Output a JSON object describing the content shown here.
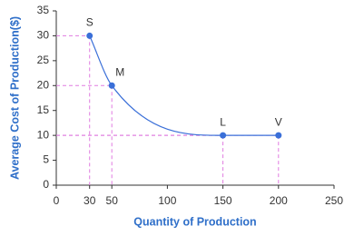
{
  "chart_data": {
    "type": "line",
    "x_label": "Quantity of Production",
    "y_label": "Average Cost of Production($)",
    "x": [
      30,
      50,
      150,
      200
    ],
    "values": [
      30,
      20,
      10,
      10
    ],
    "point_labels": [
      "S",
      "M",
      "L",
      "V"
    ],
    "color": "#3a6fd8",
    "guide_color": "#e07be0",
    "label_color": "#2f6fc9",
    "xlim": [
      0,
      250
    ],
    "ylim": [
      0,
      35
    ],
    "xticks": [
      0,
      30,
      50,
      100,
      150,
      200,
      250
    ],
    "yticks": [
      0,
      5,
      10,
      15,
      20,
      25,
      30,
      35
    ]
  }
}
